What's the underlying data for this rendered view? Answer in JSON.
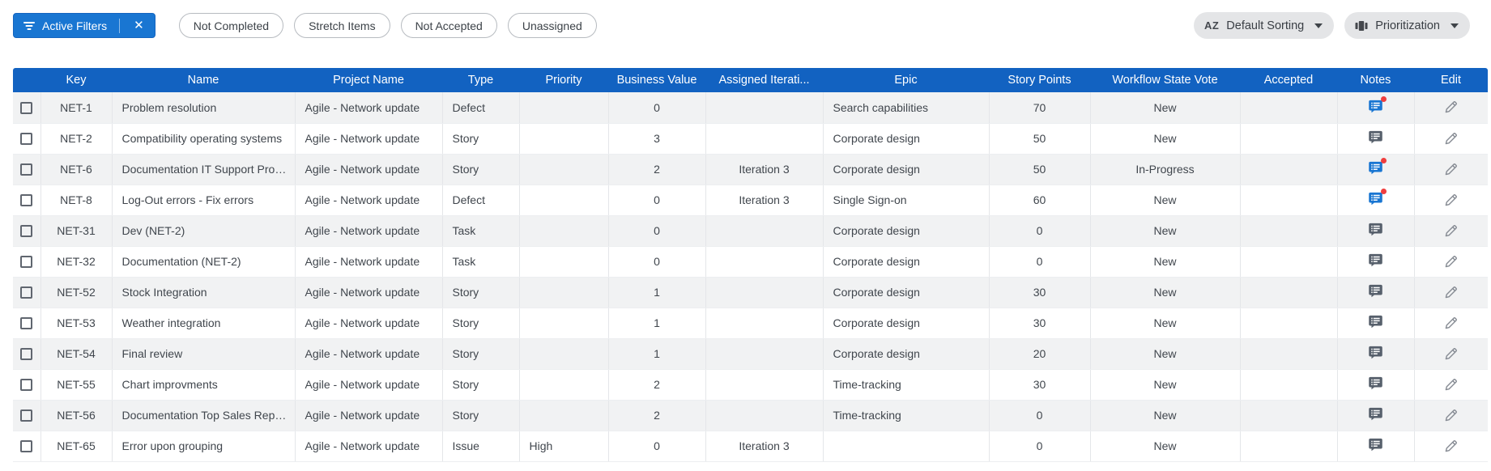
{
  "toolbar": {
    "active_filters": {
      "label": "Active Filters",
      "close_glyph": "✕"
    },
    "chips": [
      "Not Completed",
      "Stretch Items",
      "Not Accepted",
      "Unassigned"
    ],
    "sorting_button": {
      "icon_glyph": "AZ",
      "label": "Default Sorting"
    },
    "grouping_button": {
      "label": "Prioritization"
    }
  },
  "icons": {
    "filter-icon": "funnel-lines",
    "close-icon": "✕",
    "sort-alpha-icon": "AZ",
    "prioritization-icon": "column-bars",
    "caret-down-icon": "▼",
    "notes-icon": "note-bubble-with-list",
    "notes-alert-icon": "red-dot-badge",
    "edit-icon": "pencil",
    "checkbox-icon": "empty-square"
  },
  "colors": {
    "header_blue": "#1262c1",
    "button_blue": "#1976d2",
    "alert_red": "#f03e3e",
    "notes_gray": "#57606c",
    "stripe_gray": "#f1f2f3",
    "pill_gray": "#e4e5e7"
  },
  "table": {
    "columns": [
      {
        "id": "check",
        "label": ""
      },
      {
        "id": "key",
        "label": "Key"
      },
      {
        "id": "name",
        "label": "Name"
      },
      {
        "id": "project",
        "label": "Project Name"
      },
      {
        "id": "type",
        "label": "Type"
      },
      {
        "id": "priority",
        "label": "Priority"
      },
      {
        "id": "business_value",
        "label": "Business Value"
      },
      {
        "id": "iteration",
        "label": "Assigned Iterati..."
      },
      {
        "id": "epic",
        "label": "Epic"
      },
      {
        "id": "story_points",
        "label": "Story Points"
      },
      {
        "id": "workflow_state",
        "label": "Workflow State Vote"
      },
      {
        "id": "accepted",
        "label": "Accepted"
      },
      {
        "id": "notes",
        "label": "Notes"
      },
      {
        "id": "edit",
        "label": "Edit"
      }
    ],
    "rows": [
      {
        "key": "NET-1",
        "name": "Problem resolution",
        "project": "Agile - Network update",
        "type": "Defect",
        "priority": "",
        "business_value": "0",
        "iteration": "",
        "epic": "Search capabilities",
        "story_points": "70",
        "workflow_state": "New",
        "accepted": "",
        "notes_alert": true
      },
      {
        "key": "NET-2",
        "name": "Compatibility operating systems",
        "project": "Agile - Network update",
        "type": "Story",
        "priority": "",
        "business_value": "3",
        "iteration": "",
        "epic": "Corporate design",
        "story_points": "50",
        "workflow_state": "New",
        "accepted": "",
        "notes_alert": false
      },
      {
        "key": "NET-6",
        "name": "Documentation IT Support Proc...",
        "project": "Agile - Network update",
        "type": "Story",
        "priority": "",
        "business_value": "2",
        "iteration": "Iteration 3",
        "epic": "Corporate design",
        "story_points": "50",
        "workflow_state": "In-Progress",
        "accepted": "",
        "notes_alert": true
      },
      {
        "key": "NET-8",
        "name": "Log-Out errors - Fix errors",
        "project": "Agile - Network update",
        "type": "Defect",
        "priority": "",
        "business_value": "0",
        "iteration": "Iteration 3",
        "epic": "Single Sign-on",
        "story_points": "60",
        "workflow_state": "New",
        "accepted": "",
        "notes_alert": true
      },
      {
        "key": "NET-31",
        "name": "Dev (NET-2)",
        "project": "Agile - Network update",
        "type": "Task",
        "priority": "",
        "business_value": "0",
        "iteration": "",
        "epic": "Corporate design",
        "story_points": "0",
        "workflow_state": "New",
        "accepted": "",
        "notes_alert": false
      },
      {
        "key": "NET-32",
        "name": "Documentation (NET-2)",
        "project": "Agile - Network update",
        "type": "Task",
        "priority": "",
        "business_value": "0",
        "iteration": "",
        "epic": "Corporate design",
        "story_points": "0",
        "workflow_state": "New",
        "accepted": "",
        "notes_alert": false
      },
      {
        "key": "NET-52",
        "name": "Stock Integration",
        "project": "Agile - Network update",
        "type": "Story",
        "priority": "",
        "business_value": "1",
        "iteration": "",
        "epic": "Corporate design",
        "story_points": "30",
        "workflow_state": "New",
        "accepted": "",
        "notes_alert": false
      },
      {
        "key": "NET-53",
        "name": "Weather integration",
        "project": "Agile - Network update",
        "type": "Story",
        "priority": "",
        "business_value": "1",
        "iteration": "",
        "epic": "Corporate design",
        "story_points": "30",
        "workflow_state": "New",
        "accepted": "",
        "notes_alert": false
      },
      {
        "key": "NET-54",
        "name": "Final review",
        "project": "Agile - Network update",
        "type": "Story",
        "priority": "",
        "business_value": "1",
        "iteration": "",
        "epic": "Corporate design",
        "story_points": "20",
        "workflow_state": "New",
        "accepted": "",
        "notes_alert": false
      },
      {
        "key": "NET-55",
        "name": "Chart improvments",
        "project": "Agile - Network update",
        "type": "Story",
        "priority": "",
        "business_value": "2",
        "iteration": "",
        "epic": "Time-tracking",
        "story_points": "30",
        "workflow_state": "New",
        "accepted": "",
        "notes_alert": false
      },
      {
        "key": "NET-56",
        "name": "Documentation Top Sales Repre...",
        "project": "Agile - Network update",
        "type": "Story",
        "priority": "",
        "business_value": "2",
        "iteration": "",
        "epic": "Time-tracking",
        "story_points": "0",
        "workflow_state": "New",
        "accepted": "",
        "notes_alert": false
      },
      {
        "key": "NET-65",
        "name": "Error upon grouping",
        "project": "Agile - Network update",
        "type": "Issue",
        "priority": "High",
        "business_value": "0",
        "iteration": "Iteration 3",
        "epic": "",
        "story_points": "0",
        "workflow_state": "New",
        "accepted": "",
        "notes_alert": false
      }
    ]
  }
}
